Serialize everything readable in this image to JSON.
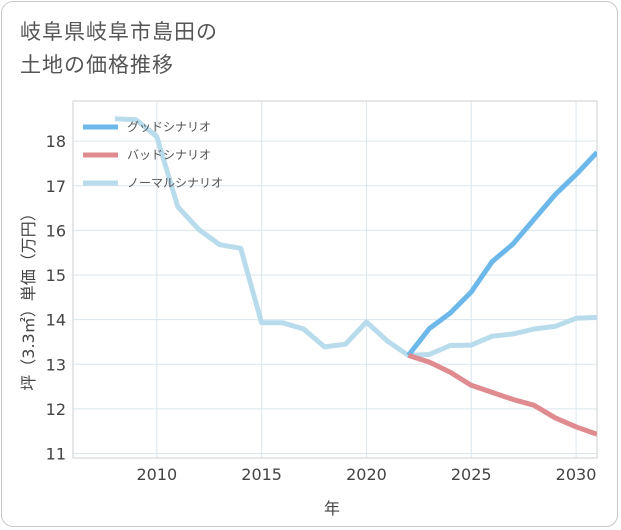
{
  "title_line1": "岐阜県岐阜市島田の",
  "title_line2": "土地の価格推移",
  "chart_data": {
    "type": "line",
    "title": "岐阜県岐阜市島田の土地の価格推移",
    "xlabel": "年",
    "ylabel": "坪（3.3㎡）単価（万円）",
    "xlim": [
      2006,
      2031
    ],
    "ylim": [
      10.9,
      18.9
    ],
    "x_ticks": [
      2010,
      2015,
      2020,
      2025,
      2030
    ],
    "y_ticks": [
      11,
      12,
      13,
      14,
      15,
      16,
      17,
      18
    ],
    "grid": true,
    "legend_position": "top-left",
    "series": [
      {
        "name": "グッドシナリオ",
        "color": "#6cb8ea",
        "x": [
          2022,
          2023,
          2024,
          2025,
          2026,
          2027,
          2028,
          2029,
          2030,
          2031
        ],
        "values": [
          13.2,
          13.8,
          14.15,
          14.62,
          15.3,
          15.7,
          16.25,
          16.8,
          17.25,
          17.75
        ]
      },
      {
        "name": "バッドシナリオ",
        "color": "#df8b90",
        "x": [
          2022,
          2023,
          2024,
          2025,
          2026,
          2027,
          2028,
          2029,
          2030,
          2031
        ],
        "values": [
          13.2,
          13.05,
          12.82,
          12.53,
          12.37,
          12.21,
          12.08,
          11.8,
          11.6,
          11.43
        ]
      },
      {
        "name": "ノーマルシナリオ",
        "color": "#b9dcec",
        "x": [
          2008,
          2009,
          2010,
          2011,
          2012,
          2013,
          2014,
          2015,
          2016,
          2017,
          2018,
          2019,
          2020,
          2021,
          2022,
          2023,
          2024,
          2025,
          2026,
          2027,
          2028,
          2029,
          2030,
          2031
        ],
        "values": [
          18.5,
          18.48,
          18.1,
          16.53,
          16.02,
          15.68,
          15.6,
          13.93,
          13.93,
          13.79,
          13.39,
          13.45,
          13.95,
          13.52,
          13.2,
          13.22,
          13.42,
          13.43,
          13.63,
          13.68,
          13.79,
          13.85,
          14.03,
          14.05
        ]
      }
    ]
  }
}
